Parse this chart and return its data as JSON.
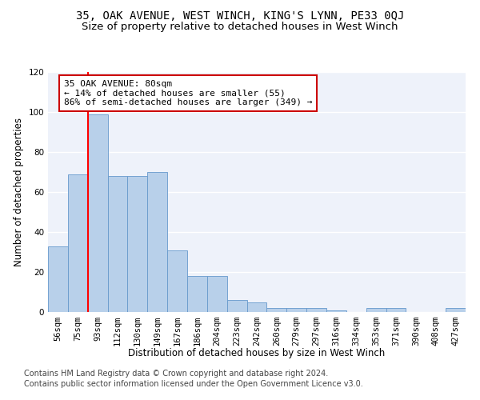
{
  "title": "35, OAK AVENUE, WEST WINCH, KING'S LYNN, PE33 0QJ",
  "subtitle": "Size of property relative to detached houses in West Winch",
  "xlabel": "Distribution of detached houses by size in West Winch",
  "ylabel": "Number of detached properties",
  "categories": [
    "56sqm",
    "75sqm",
    "93sqm",
    "112sqm",
    "130sqm",
    "149sqm",
    "167sqm",
    "186sqm",
    "204sqm",
    "223sqm",
    "242sqm",
    "260sqm",
    "279sqm",
    "297sqm",
    "316sqm",
    "334sqm",
    "353sqm",
    "371sqm",
    "390sqm",
    "408sqm",
    "427sqm"
  ],
  "values": [
    33,
    69,
    99,
    68,
    68,
    70,
    31,
    18,
    18,
    6,
    5,
    2,
    2,
    2,
    1,
    0,
    2,
    2,
    0,
    0,
    2
  ],
  "bar_color": "#b8d0ea",
  "bar_edge_color": "#6699cc",
  "red_line_x": 1.5,
  "annotation_text": "35 OAK AVENUE: 80sqm\n← 14% of detached houses are smaller (55)\n86% of semi-detached houses are larger (349) →",
  "annotation_box_color": "#ffffff",
  "annotation_box_edge": "#cc0000",
  "ylim": [
    0,
    120
  ],
  "yticks": [
    0,
    20,
    40,
    60,
    80,
    100,
    120
  ],
  "footer_line1": "Contains HM Land Registry data © Crown copyright and database right 2024.",
  "footer_line2": "Contains public sector information licensed under the Open Government Licence v3.0.",
  "bg_color": "#eef2fa",
  "grid_color": "#ffffff",
  "title_fontsize": 10,
  "subtitle_fontsize": 9.5,
  "axis_label_fontsize": 8.5,
  "tick_fontsize": 7.5,
  "annotation_fontsize": 8,
  "footer_fontsize": 7
}
